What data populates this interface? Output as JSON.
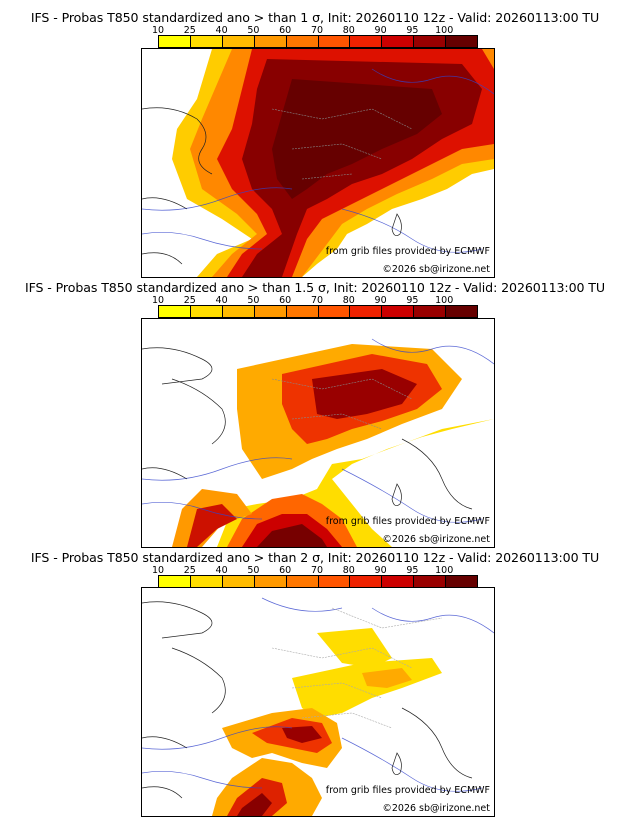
{
  "legend": {
    "ticks": [
      "10",
      "25",
      "40",
      "50",
      "60",
      "70",
      "80",
      "90",
      "95",
      "100"
    ],
    "colors": [
      "#ffff00",
      "#ffdd00",
      "#ffbb00",
      "#ff9900",
      "#ff7700",
      "#ff5500",
      "#ee2200",
      "#cc0000",
      "#990000",
      "#660000"
    ]
  },
  "panels": [
    {
      "title": "IFS - Probas T850  standardized ano > than 1 σ, Init: 20260110 12z - Valid: 20260113:00 TU",
      "source": "from grib files provided by ECMWF",
      "copyright": "©2026 sb@irizone.net"
    },
    {
      "title": "IFS - Probas T850  standardized ano > than 1.5 σ, Init: 20260110 12z - Valid: 20260113:00 TU",
      "source": "from grib files provided by ECMWF",
      "copyright": "©2026 sb@irizone.net"
    },
    {
      "title": "IFS - Probas T850  standardized ano > than 2 σ, Init: 20260110 12z - Valid: 20260113:00 TU",
      "source": "from grib files provided by ECMWF",
      "copyright": "©2026 sb@irizone.net"
    }
  ]
}
